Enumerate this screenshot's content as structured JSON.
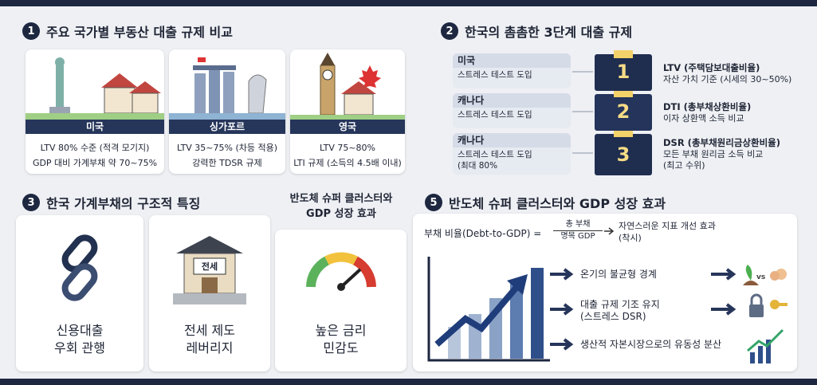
{
  "section1": {
    "number": "1",
    "title": "주요 국가별 부동산 대출 규제 비교",
    "cards": [
      {
        "name": "미국",
        "lines": [
          "LTV 80% 수준 (적격 모기지)",
          "GDP 대비 가계부채 약 70~75%"
        ]
      },
      {
        "name": "싱가포르",
        "lines": [
          "LTV 35~75% (차등 적용)",
          "강력한 TDSR 규제"
        ]
      },
      {
        "name": "영국",
        "lines": [
          "LTV 75~80%",
          "LTI 규제 (소득의 4.5배 이내)"
        ]
      }
    ]
  },
  "section2": {
    "number": "2",
    "title": "한국의 촘촘한 3단계 대출 규제",
    "countries": [
      {
        "name": "미국",
        "lines": [
          "스트레스 테스트 도입"
        ]
      },
      {
        "name": "캐나다",
        "lines": [
          "스트레스 테스트 도입"
        ]
      },
      {
        "name": "캐나다",
        "lines": [
          "스트레스 테스트 도입",
          "(최대 80%"
        ]
      }
    ],
    "steps": [
      {
        "number": "1",
        "title": "LTV (주택담보대출비율)",
        "lines": [
          "자산 가치 기준 (시세의 30~50%)"
        ]
      },
      {
        "number": "2",
        "title": "DTI (총부채상환비율)",
        "lines": [
          "이자 상환액 소득 비교"
        ]
      },
      {
        "number": "3",
        "title": "DSR (총부채원리금상환비율)",
        "lines": [
          "모든 부채 원리금 소득 비교",
          "(최고 수위)"
        ]
      }
    ]
  },
  "section3": {
    "number": "3",
    "title": "한국 가계부채의 구조적 특징",
    "cards": [
      {
        "lines": [
          "신용대출",
          "우회 관행"
        ]
      },
      {
        "lines": [
          "전세 제도",
          "레버리지"
        ]
      },
      {
        "lines": [
          "높은 금리",
          "민감도"
        ]
      }
    ],
    "sign": "전세",
    "side_heading": [
      "반도체 슈퍼 클러스터와",
      "GDP 성장 효과"
    ]
  },
  "section5": {
    "number": "5",
    "title": "반도체 슈퍼 클러스터와 GDP 성장 효과",
    "formula": {
      "left": "부채 비율(Debt-to-GDP) =",
      "numerator": "총 부채",
      "denominator": "명목 GDP",
      "result": "자연스러운 지표 개선 효과",
      "note": "(착시)"
    },
    "items": [
      {
        "lines": [
          "온기의 불균형 경계"
        ]
      },
      {
        "lines": [
          "대출 규제 기조 유지",
          "(스트레스 DSR)"
        ]
      },
      {
        "lines": [
          "생산적 자본시장으로의 유동성 분산"
        ]
      }
    ],
    "vs": "vs"
  }
}
